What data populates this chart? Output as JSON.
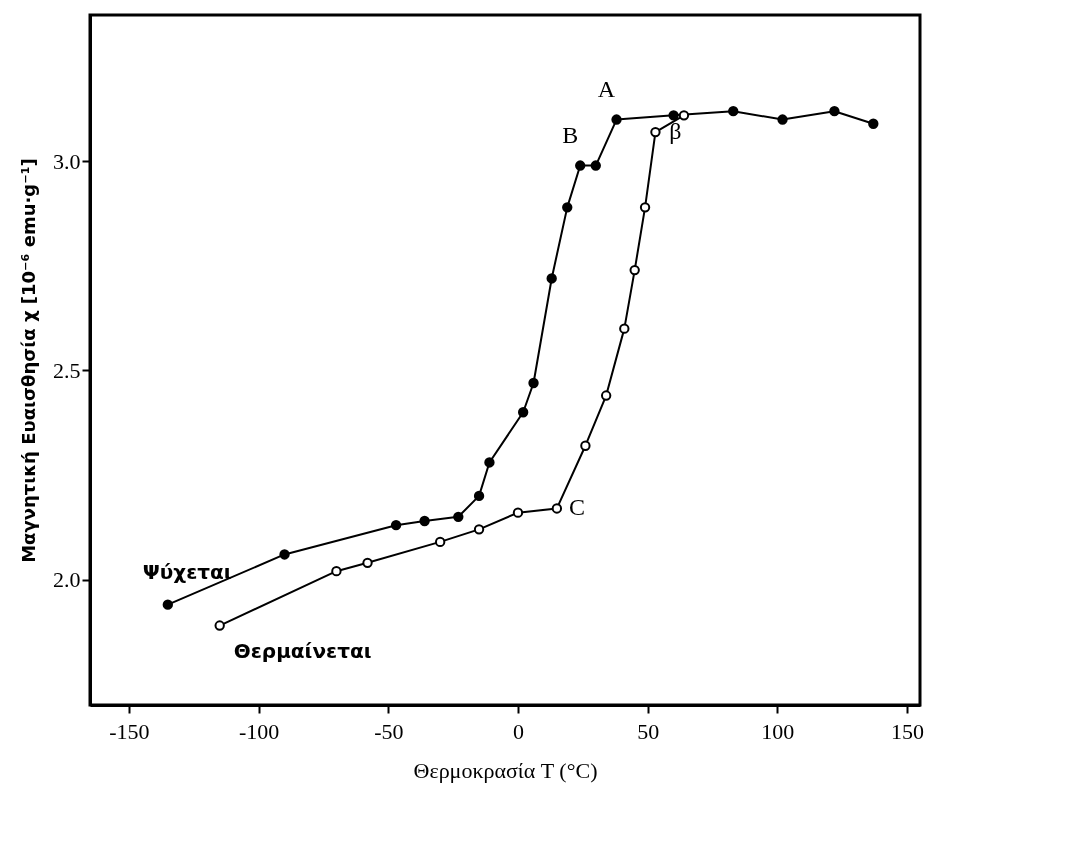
{
  "chart_data": {
    "type": "line",
    "xlabel": "Θερμοκρασία   T (°C)",
    "ylabel": "Μαγνητική Ευαισθησία   χ [10⁻⁶ emu·g⁻¹]",
    "xlim": [
      -165,
      155
    ],
    "ylim": [
      1.7,
      3.35
    ],
    "xticks": [
      -150,
      -100,
      -50,
      0,
      50,
      100,
      150
    ],
    "yticks": [
      {
        "value": 2,
        "label": "2.0"
      },
      {
        "value": 2.5,
        "label": "2.5"
      },
      {
        "value": 3,
        "label": "3.0"
      }
    ],
    "grid": false,
    "marker": "circle",
    "series": [
      {
        "name": "Ψύχεται",
        "color": "#000000",
        "x": [
          -135,
          -90,
          -47,
          -36,
          -23,
          -15,
          -11,
          2,
          6,
          13,
          19,
          24,
          30,
          38,
          60,
          83,
          102,
          122,
          137
        ],
        "values": [
          1.94,
          2.06,
          2.13,
          2.14,
          2.15,
          2.2,
          2.28,
          2.4,
          2.47,
          2.72,
          2.89,
          2.99,
          2.99,
          3.1,
          3.11,
          3.12,
          3.1,
          3.12,
          3.09
        ]
      },
      {
        "name": "Θερμαίνεται",
        "color": "#000000",
        "x": [
          -115,
          -70,
          -58,
          -30,
          -15,
          0,
          15,
          26,
          34,
          41,
          45,
          49,
          53,
          64
        ],
        "values": [
          1.89,
          2.02,
          2.04,
          2.09,
          2.12,
          2.16,
          2.17,
          2.32,
          2.44,
          2.6,
          2.74,
          2.89,
          3.07,
          3.11
        ]
      }
    ],
    "annotations": [
      {
        "text": "A",
        "x": 38,
        "y": 3.1
      },
      {
        "text": "B",
        "x": 24,
        "y": 2.99
      },
      {
        "text": "β",
        "x": 53,
        "y": 3.07
      },
      {
        "text": "C",
        "x": 15,
        "y": 2.17
      }
    ]
  }
}
